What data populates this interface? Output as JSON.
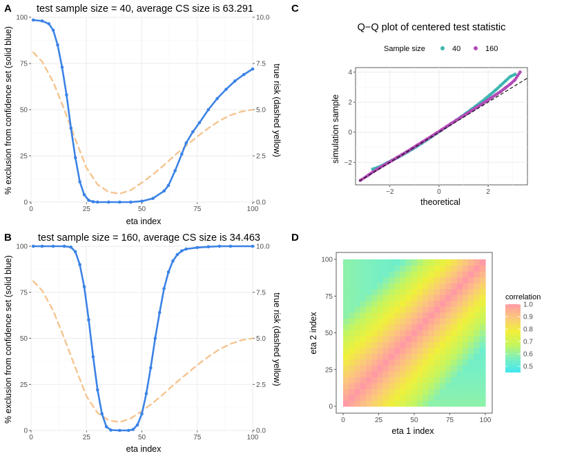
{
  "colors": {
    "blue": "#3b82e6",
    "orange": "#f5c48f",
    "teal": "#3db6b1",
    "magenta": "#b24ab6",
    "grid": "#ebebeb",
    "panel_border": "#333333"
  },
  "panel_labels": {
    "A": "A",
    "B": "B",
    "C": "C",
    "D": "D"
  },
  "chart_data": [
    {
      "id": "A",
      "type": "line",
      "title": "test sample size = 40, average CS size is 63.291",
      "xlabel": "eta index",
      "ylabel": "% exclusion from confidence set (solid blue)",
      "y2label": "true risk (dashed yellow)",
      "xlim": [
        0,
        100
      ],
      "ylim": [
        0,
        100
      ],
      "y2lim": [
        0,
        10
      ],
      "xticks": [
        "0",
        "25",
        "50",
        "75",
        "100"
      ],
      "yticks": [
        "0",
        "25",
        "50",
        "75",
        "100"
      ],
      "y2ticks": [
        "0.0",
        "2.5",
        "5.0",
        "7.5",
        "10.0"
      ],
      "series": [
        {
          "name": "exclusion",
          "style": "solid-points",
          "x": [
            1,
            5,
            8,
            10,
            12,
            14,
            16,
            18,
            20,
            22,
            24,
            26,
            28,
            30,
            35,
            40,
            45,
            50,
            55,
            60,
            62,
            65,
            68,
            70,
            73,
            76,
            80,
            84,
            88,
            92,
            96,
            100
          ],
          "values": [
            98.5,
            98,
            96.5,
            93,
            85,
            73,
            58,
            40,
            24,
            11,
            4,
            1,
            0.2,
            0,
            0,
            0,
            0,
            0.5,
            2,
            6,
            9,
            17,
            26,
            32,
            38,
            43,
            50,
            56,
            61,
            65.5,
            69,
            72
          ]
        },
        {
          "name": "true risk",
          "style": "dashed",
          "x": [
            1,
            5,
            10,
            15,
            20,
            25,
            30,
            35,
            40,
            45,
            50,
            55,
            60,
            65,
            70,
            75,
            80,
            85,
            90,
            95,
            100
          ],
          "values": [
            8.1,
            7.6,
            6.5,
            5.0,
            3.4,
            1.85,
            0.95,
            0.55,
            0.45,
            0.65,
            1.05,
            1.5,
            2.0,
            2.55,
            3.05,
            3.55,
            4.0,
            4.4,
            4.7,
            4.9,
            5.0
          ]
        }
      ]
    },
    {
      "id": "B",
      "type": "line",
      "title": "test sample size = 160, average CS size is 34.463",
      "xlabel": "eta index",
      "ylabel": "% exclusion from confidence set (solid blue)",
      "y2label": "true risk (dashed yellow)",
      "xlim": [
        0,
        100
      ],
      "ylim": [
        0,
        100
      ],
      "y2lim": [
        0,
        10
      ],
      "xticks": [
        "0",
        "25",
        "50",
        "75",
        "100"
      ],
      "yticks": [
        "0",
        "25",
        "50",
        "75",
        "100"
      ],
      "y2ticks": [
        "0.0",
        "2.5",
        "5.0",
        "7.5",
        "10.0"
      ],
      "series": [
        {
          "name": "exclusion",
          "style": "solid-points",
          "x": [
            1,
            5,
            10,
            15,
            18,
            20,
            22,
            24,
            26,
            28,
            30,
            32,
            34,
            36,
            40,
            44,
            46,
            48,
            50,
            52,
            54,
            56,
            58,
            60,
            62,
            64,
            66,
            68,
            70,
            75,
            80,
            85,
            90,
            100
          ],
          "values": [
            100,
            100,
            100,
            100,
            99.5,
            97,
            90,
            78,
            60,
            40,
            22,
            9,
            2,
            0.2,
            0,
            0,
            0.5,
            3,
            9,
            20,
            34,
            50,
            64,
            77,
            86,
            92,
            95.5,
            97.5,
            98.5,
            99.3,
            99.7,
            100,
            100,
            100
          ]
        },
        {
          "name": "true risk",
          "style": "dashed",
          "x": [
            1,
            5,
            10,
            15,
            20,
            25,
            30,
            35,
            40,
            45,
            50,
            55,
            60,
            65,
            70,
            75,
            80,
            85,
            90,
            95,
            100
          ],
          "values": [
            8.1,
            7.6,
            6.5,
            5.0,
            3.4,
            1.85,
            0.95,
            0.55,
            0.45,
            0.65,
            1.05,
            1.5,
            2.0,
            2.55,
            3.05,
            3.55,
            4.0,
            4.4,
            4.7,
            4.9,
            5.0
          ]
        }
      ]
    },
    {
      "id": "C",
      "type": "scatter",
      "title": "Q−Q plot of centered test statistic",
      "xlabel": "theoretical",
      "ylabel": "simulation sample",
      "legend_title": "Sample size",
      "xlim": [
        -3.4,
        3.6
      ],
      "ylim": [
        -3.5,
        4.3
      ],
      "xticks": [
        -2,
        0,
        2
      ],
      "xtick_labels": [
        "−2",
        "0",
        "2"
      ],
      "yticks": [
        -2,
        0,
        2,
        4
      ],
      "ytick_labels": [
        "−2",
        "0",
        "2",
        "4"
      ],
      "reference_line": {
        "slope": 1,
        "intercept": 0
      },
      "series": [
        {
          "name": "40",
          "color_key": "teal",
          "x": [
            -2.7,
            -2.5,
            -2.3,
            -2.1,
            -1.9,
            -1.7,
            -1.5,
            -1.3,
            -1.1,
            -0.9,
            -0.7,
            -0.5,
            -0.3,
            -0.1,
            0.1,
            0.3,
            0.5,
            0.7,
            0.9,
            1.1,
            1.3,
            1.5,
            1.7,
            1.9,
            2.1,
            2.3,
            2.5,
            2.7,
            2.9,
            3.1
          ],
          "values": [
            -2.45,
            -2.35,
            -2.2,
            -2.02,
            -1.86,
            -1.7,
            -1.52,
            -1.33,
            -1.14,
            -0.94,
            -0.73,
            -0.52,
            -0.3,
            -0.08,
            0.14,
            0.36,
            0.58,
            0.8,
            1.03,
            1.26,
            1.5,
            1.74,
            1.99,
            2.25,
            2.52,
            2.8,
            3.1,
            3.4,
            3.7,
            3.85
          ]
        },
        {
          "name": "160",
          "color_key": "magenta",
          "x": [
            -3.2,
            -2.9,
            -2.7,
            -2.5,
            -2.3,
            -2.1,
            -1.9,
            -1.7,
            -1.5,
            -1.3,
            -1.1,
            -0.9,
            -0.7,
            -0.5,
            -0.3,
            -0.1,
            0.1,
            0.3,
            0.5,
            0.7,
            0.9,
            1.1,
            1.3,
            1.5,
            1.7,
            1.9,
            2.1,
            2.3,
            2.5,
            2.7,
            2.9,
            3.1,
            3.3
          ],
          "values": [
            -3.2,
            -2.88,
            -2.65,
            -2.45,
            -2.25,
            -2.06,
            -1.87,
            -1.67,
            -1.48,
            -1.28,
            -1.08,
            -0.87,
            -0.67,
            -0.46,
            -0.26,
            -0.05,
            0.16,
            0.37,
            0.58,
            0.79,
            1.0,
            1.2,
            1.41,
            1.62,
            1.83,
            2.04,
            2.26,
            2.48,
            2.7,
            2.95,
            3.2,
            3.5,
            4.0
          ]
        }
      ]
    },
    {
      "id": "D",
      "type": "heatmap",
      "title": "",
      "xlabel": "eta 1 index",
      "ylabel": "eta 2 index",
      "legend_title": "correlation",
      "xlim": [
        0,
        100
      ],
      "ylim": [
        0,
        100
      ],
      "xticks": [
        "0",
        "25",
        "50",
        "75",
        "100"
      ],
      "yticks": [
        "0",
        "25",
        "50",
        "75",
        "100"
      ],
      "value_range": [
        0.45,
        1.0
      ],
      "legend_ticks": [
        "1.0",
        "0.9",
        "0.8",
        "0.7",
        "0.6",
        "0.5"
      ],
      "legend_values": [
        1.0,
        0.9,
        0.8,
        0.7,
        0.6,
        0.5
      ],
      "description_values": {
        "diagonal": 1.0,
        "corner_top_left": 0.45,
        "corner_bottom_right": 0.45
      }
    }
  ]
}
